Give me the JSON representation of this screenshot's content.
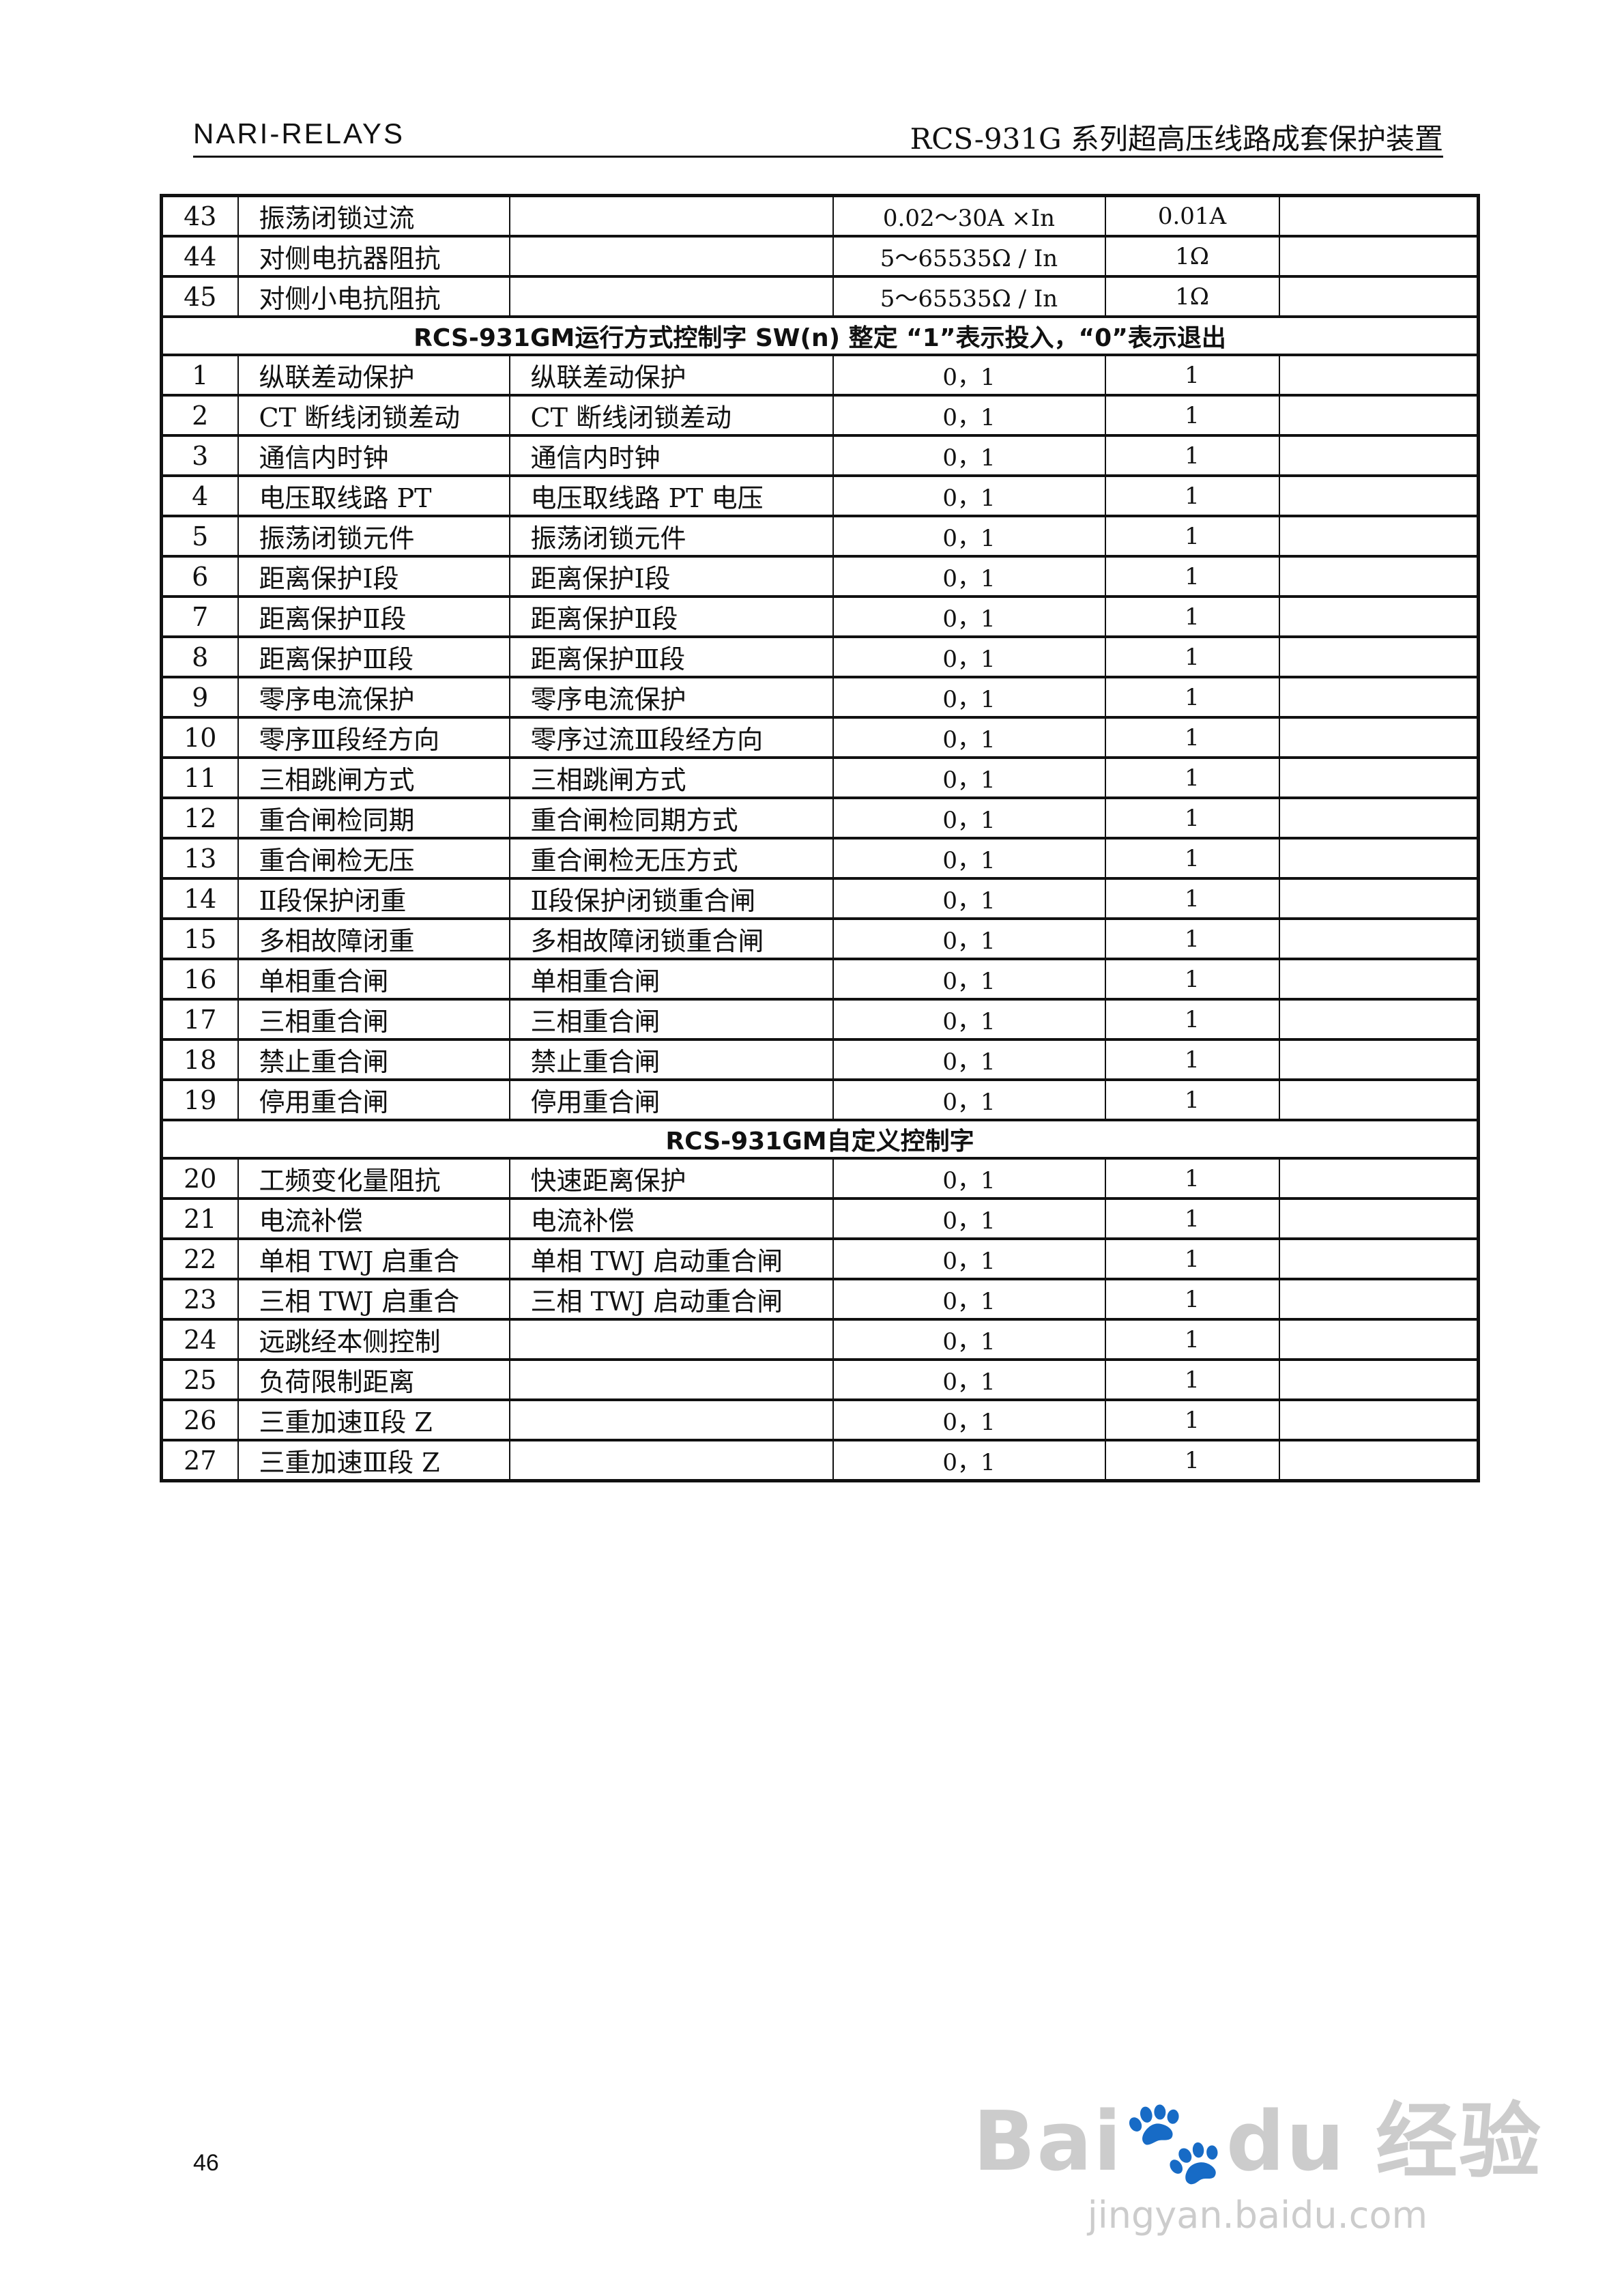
{
  "header": {
    "left": "NARI-RELAYS",
    "right": "RCS-931G 系列超高压线路成套保护装置"
  },
  "table": {
    "rows": [
      {
        "n": "43",
        "name": "振荡闭锁过流",
        "desc": "",
        "range": "0.02～30A ×In",
        "step": "0.01A",
        "note": ""
      },
      {
        "n": "44",
        "name": "对侧电抗器阻抗",
        "desc": "",
        "range": "5～65535Ω / In",
        "step": "1Ω",
        "note": ""
      },
      {
        "n": "45",
        "name": "对侧小电抗阻抗",
        "desc": "",
        "range": "5～65535Ω / In",
        "step": "1Ω",
        "note": ""
      },
      {
        "section": "RCS-931GM运行方式控制字 SW(n)   整定 “1”表示投入，“0”表示退出"
      },
      {
        "n": "1",
        "name": "纵联差动保护",
        "desc": "纵联差动保护",
        "range": "0，1",
        "step": "1",
        "note": ""
      },
      {
        "n": "2",
        "name": "CT 断线闭锁差动",
        "desc": "CT 断线闭锁差动",
        "range": "0，1",
        "step": "1",
        "note": ""
      },
      {
        "n": "3",
        "name": "通信内时钟",
        "desc": "通信内时钟",
        "range": "0，1",
        "step": "1",
        "note": ""
      },
      {
        "n": "4",
        "name": "电压取线路 PT",
        "desc": "电压取线路 PT 电压",
        "range": "0，1",
        "step": "1",
        "note": ""
      },
      {
        "n": "5",
        "name": "振荡闭锁元件",
        "desc": "振荡闭锁元件",
        "range": "0，1",
        "step": "1",
        "note": ""
      },
      {
        "n": "6",
        "name": "距离保护Ⅰ段",
        "desc": "距离保护Ⅰ段",
        "range": "0，1",
        "step": "1",
        "note": ""
      },
      {
        "n": "7",
        "name": "距离保护Ⅱ段",
        "desc": "距离保护Ⅱ段",
        "range": "0，1",
        "step": "1",
        "note": ""
      },
      {
        "n": "8",
        "name": "距离保护Ⅲ段",
        "desc": "距离保护Ⅲ段",
        "range": "0，1",
        "step": "1",
        "note": ""
      },
      {
        "n": "9",
        "name": "零序电流保护",
        "desc": "零序电流保护",
        "range": "0，1",
        "step": "1",
        "note": ""
      },
      {
        "n": "10",
        "name": "零序Ⅲ段经方向",
        "desc": "零序过流Ⅲ段经方向",
        "range": "0，1",
        "step": "1",
        "note": ""
      },
      {
        "n": "11",
        "name": "三相跳闸方式",
        "desc": "三相跳闸方式",
        "range": "0，1",
        "step": "1",
        "note": ""
      },
      {
        "n": "12",
        "name": "重合闸检同期",
        "desc": "重合闸检同期方式",
        "range": "0，1",
        "step": "1",
        "note": ""
      },
      {
        "n": "13",
        "name": "重合闸检无压",
        "desc": "重合闸检无压方式",
        "range": "0，1",
        "step": "1",
        "note": ""
      },
      {
        "n": "14",
        "name": "Ⅱ段保护闭重",
        "desc": "Ⅱ段保护闭锁重合闸",
        "range": "0，1",
        "step": "1",
        "note": ""
      },
      {
        "n": "15",
        "name": "多相故障闭重",
        "desc": "多相故障闭锁重合闸",
        "range": "0，1",
        "step": "1",
        "note": ""
      },
      {
        "n": "16",
        "name": "单相重合闸",
        "desc": "单相重合闸",
        "range": "0，1",
        "step": "1",
        "note": ""
      },
      {
        "n": "17",
        "name": "三相重合闸",
        "desc": "三相重合闸",
        "range": "0，1",
        "step": "1",
        "note": ""
      },
      {
        "n": "18",
        "name": "禁止重合闸",
        "desc": "禁止重合闸",
        "range": "0，1",
        "step": "1",
        "note": ""
      },
      {
        "n": "19",
        "name": "停用重合闸",
        "desc": "停用重合闸",
        "range": "0，1",
        "step": "1",
        "note": ""
      },
      {
        "section": "RCS-931GM自定义控制字"
      },
      {
        "n": "20",
        "name": "工频变化量阻抗",
        "desc": "快速距离保护",
        "range": "0，1",
        "step": "1",
        "note": ""
      },
      {
        "n": "21",
        "name": "电流补偿",
        "desc": "电流补偿",
        "range": "0，1",
        "step": "1",
        "note": ""
      },
      {
        "n": "22",
        "name": "单相 TWJ 启重合",
        "desc": "单相 TWJ 启动重合闸",
        "range": "0，1",
        "step": "1",
        "note": ""
      },
      {
        "n": "23",
        "name": "三相 TWJ 启重合",
        "desc": "三相 TWJ 启动重合闸",
        "range": "0，1",
        "step": "1",
        "note": ""
      },
      {
        "n": "24",
        "name": "远跳经本侧控制",
        "desc": "",
        "range": "0，1",
        "step": "1",
        "note": ""
      },
      {
        "n": "25",
        "name": "负荷限制距离",
        "desc": "",
        "range": "0，1",
        "step": "1",
        "note": ""
      },
      {
        "n": "26",
        "name": "三重加速Ⅱ段 Z",
        "desc": "",
        "range": "0，1",
        "step": "1",
        "note": ""
      },
      {
        "n": "27",
        "name": "三重加速Ⅲ段 Z",
        "desc": "",
        "range": "0，1",
        "step": "1",
        "note": ""
      }
    ]
  },
  "footer": {
    "page_number": "46"
  },
  "watermark": {
    "brand": "Bai du 经验",
    "url": "jingyan.baidu.com"
  }
}
